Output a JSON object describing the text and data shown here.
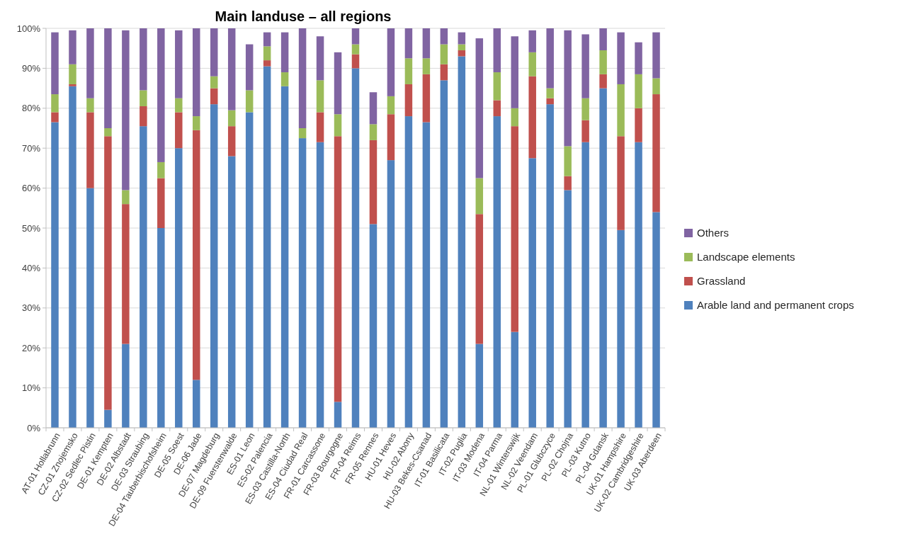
{
  "chart_data": {
    "type": "bar",
    "title": "Main landuse – all regions",
    "stacked": true,
    "legend": "right",
    "grid": "y",
    "categories": [
      "AT-01 Hollabrunn",
      "CZ-01 Znojemsko",
      "CZ-02 Sedlec Pistin",
      "DE-01 Kempten",
      "DE-02 Albstadt",
      "DE-03 Straubing",
      "DE-04 Tauberbischofsheim",
      "DE-05 Soest",
      "DE-06 Jade",
      "DE-07 Magdeburg",
      "DE-09 Fuerstenwalde",
      "ES-01 Leon",
      "ES-02 Palencia",
      "ES-03 Castilla-North",
      "ES-04 Ciudad Real",
      "FR-01 Carcassone",
      "FR-03 Bourgogne",
      "FR-04 Reims",
      "FR-05 Rennes",
      "HU-01 Heves",
      "HU-02 Abony",
      "HU-03 Bekes-Csanad",
      "IT-01 Basilicata",
      "IT-02 Puglia",
      "IT-03 Modena",
      "IT-04 Parma",
      "NL-01 Winterswijk",
      "NL-02 Veendam",
      "PL-01 Glubczyce",
      "PL-02 Chojna",
      "PL-03 Kutno",
      "PL-04 Gdansk",
      "UK-01 Hampshire",
      "UK-02 Cambridgeshire",
      "UK-03 Aberdeen"
    ],
    "series": [
      {
        "name": "Arable land and permanent crops",
        "color": "#4f81bd",
        "values": [
          76.5,
          85.5,
          60,
          4.5,
          21,
          75.5,
          50,
          70,
          12,
          81,
          68,
          79,
          90.5,
          85.5,
          72.5,
          71.5,
          6.5,
          90,
          51,
          67,
          78,
          76.5,
          87,
          93,
          21,
          78,
          24,
          67.5,
          81,
          59.5,
          71.5,
          85,
          49.5,
          71.5,
          54
        ]
      },
      {
        "name": "Grassland",
        "color": "#c0504d",
        "values": [
          2.5,
          0.5,
          19,
          68.5,
          35,
          5,
          12.5,
          9,
          62.5,
          4,
          7.5,
          0,
          1.5,
          0,
          0,
          7.5,
          66.5,
          3.5,
          21,
          11.5,
          8,
          12,
          4,
          1.5,
          32.5,
          4,
          51.5,
          20.5,
          1.5,
          3.5,
          5.5,
          3.5,
          23.5,
          8.5,
          29.5
        ]
      },
      {
        "name": "Landscape elements",
        "color": "#9bbb59",
        "values": [
          4.5,
          5,
          3.5,
          2,
          3.5,
          4,
          4,
          3.5,
          3.5,
          3,
          4,
          5.5,
          3.5,
          3.5,
          2.5,
          8,
          5.5,
          2.5,
          4,
          4.5,
          6.5,
          4,
          5,
          1.5,
          9,
          7,
          4.5,
          6,
          2.5,
          7.5,
          5.5,
          6,
          13,
          8.5,
          4
        ]
      },
      {
        "name": "Others",
        "color": "#8064a2",
        "values": [
          15.5,
          8.5,
          17.5,
          25,
          40,
          15.5,
          33.5,
          17,
          22,
          12,
          20.5,
          11.5,
          3.5,
          10,
          25,
          11,
          15.5,
          4,
          8,
          17,
          7.5,
          7.5,
          4,
          3,
          35,
          11,
          18,
          5.5,
          15,
          29,
          16,
          5.5,
          13,
          8,
          11.5
        ]
      }
    ],
    "ylim": [
      0,
      100
    ],
    "yticks": [
      {
        "value": 0,
        "label": "0%"
      },
      {
        "value": 10,
        "label": "10%"
      },
      {
        "value": 20,
        "label": "20%"
      },
      {
        "value": 30,
        "label": "30%"
      },
      {
        "value": 40,
        "label": "40%"
      },
      {
        "value": 50,
        "label": "50%"
      },
      {
        "value": 60,
        "label": "60%"
      },
      {
        "value": 70,
        "label": "70%"
      },
      {
        "value": 80,
        "label": "80%"
      },
      {
        "value": 90,
        "label": "90%"
      },
      {
        "value": 100,
        "label": "100%"
      }
    ]
  }
}
